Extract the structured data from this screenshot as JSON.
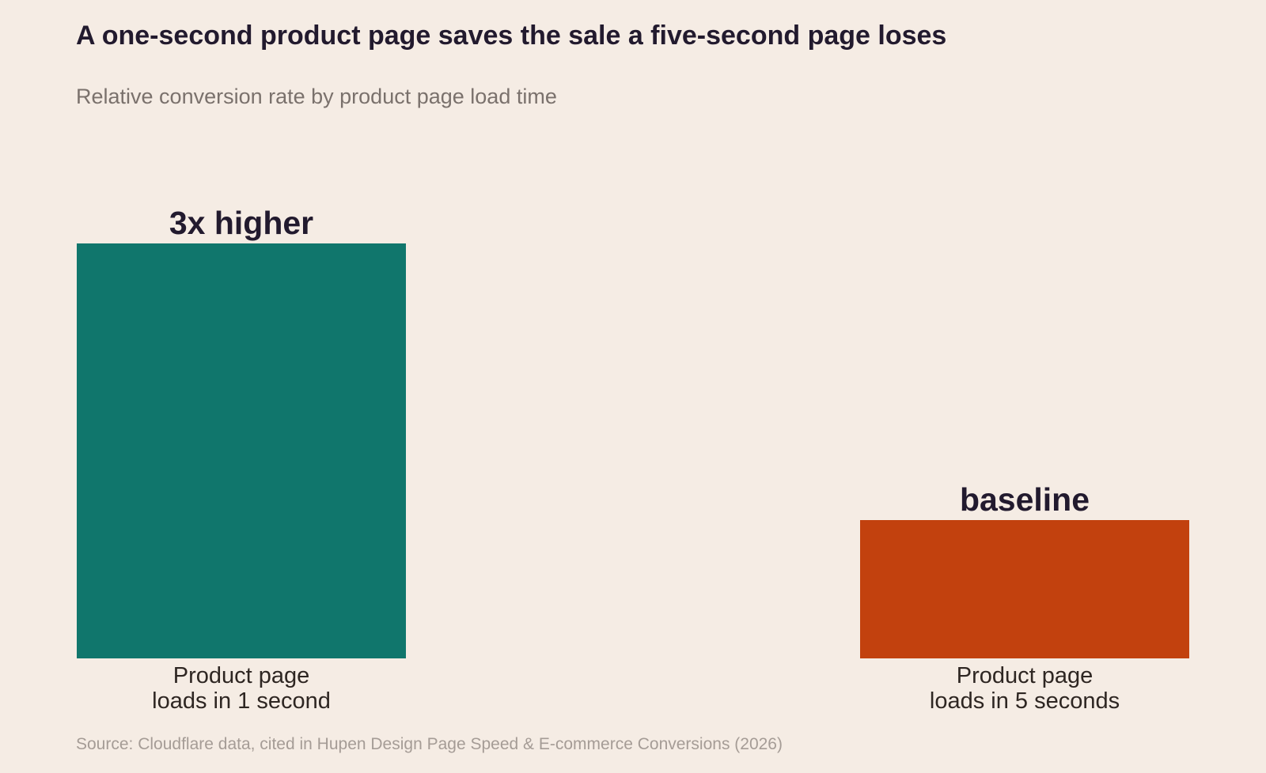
{
  "chart_data": {
    "type": "bar",
    "title": "A one-second product page saves the sale a five-second page loses",
    "subtitle": "Relative conversion rate by product page load time",
    "categories": [
      [
        "Product page",
        "loads in 1 second"
      ],
      [
        "Product page",
        "loads in 5 seconds"
      ]
    ],
    "values": [
      3,
      1
    ],
    "value_labels": [
      "3x higher",
      "baseline"
    ],
    "colors": [
      "#10766c",
      "#c2410e"
    ],
    "ylim": [
      0,
      3
    ],
    "grid": false,
    "legend": "none",
    "source": "Source: Cloudflare data, cited in Hupen Design Page Speed & E-commerce Conversions (2026)"
  }
}
